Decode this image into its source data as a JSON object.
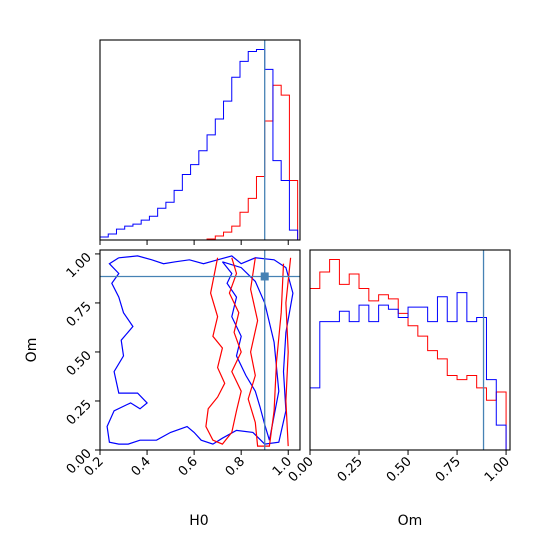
{
  "chart_data": {
    "type": "corner",
    "parameters": [
      "H0",
      "Om"
    ],
    "truths": {
      "H0": 0.9,
      "Om": 0.885
    },
    "colors": {
      "red": "#ff0000",
      "blue": "#0000ff",
      "truth": "#4682b4"
    },
    "panels": [
      {
        "id": "h0-marginal",
        "type": "histogram",
        "x": "H0",
        "xlim": [
          0.2,
          1.05
        ],
        "bin_edges": [
          0.2,
          0.235,
          0.27,
          0.305,
          0.34,
          0.375,
          0.41,
          0.445,
          0.48,
          0.515,
          0.55,
          0.585,
          0.62,
          0.655,
          0.69,
          0.725,
          0.76,
          0.795,
          0.83,
          0.865,
          0.9,
          0.935,
          0.97,
          1.005,
          1.04
        ],
        "series": [
          {
            "color": "red",
            "counts": [
              0,
              0,
              0,
              0,
              0,
              0,
              0,
              0,
              0,
              0,
              0,
              0,
              0,
              0.005,
              0.02,
              0.04,
              0.07,
              0.14,
              0.21,
              0.32,
              0.6,
              0.78,
              0.73,
              0.3
            ]
          },
          {
            "color": "blue",
            "counts": [
              0.015,
              0.03,
              0.055,
              0.07,
              0.08,
              0.1,
              0.12,
              0.16,
              0.19,
              0.25,
              0.33,
              0.38,
              0.45,
              0.53,
              0.61,
              0.7,
              0.82,
              0.9,
              0.95,
              0.96,
              0.86,
              0.4,
              0.3,
              0.05
            ]
          }
        ]
      },
      {
        "id": "om-marginal",
        "type": "histogram",
        "x": "Om",
        "xlim": [
          0,
          1.02
        ],
        "bin_edges": [
          0,
          0.05,
          0.1,
          0.15,
          0.2,
          0.25,
          0.3,
          0.35,
          0.4,
          0.45,
          0.5,
          0.55,
          0.6,
          0.65,
          0.7,
          0.75,
          0.8,
          0.85,
          0.9,
          0.95,
          1.0
        ],
        "series": [
          {
            "color": "red",
            "counts": [
              0.78,
              0.86,
              0.92,
              0.8,
              0.85,
              0.78,
              0.72,
              0.75,
              0.73,
              0.66,
              0.6,
              0.55,
              0.48,
              0.44,
              0.36,
              0.34,
              0.36,
              0.3,
              0.24,
              0.28
            ]
          },
          {
            "color": "blue",
            "counts": [
              0.3,
              0.62,
              0.62,
              0.67,
              0.62,
              0.7,
              0.62,
              0.7,
              0.68,
              0.64,
              0.69,
              0.69,
              0.62,
              0.74,
              0.62,
              0.76,
              0.62,
              0.64,
              0.34,
              0.12
            ]
          }
        ]
      },
      {
        "id": "h0-om-2d",
        "type": "contour",
        "x": "H0",
        "y": "Om",
        "xlim": [
          0.2,
          1.05
        ],
        "ylim": [
          0,
          1.02
        ],
        "xticks": [
          "0.2",
          "0.4",
          "0.6",
          "0.8",
          "1.0"
        ],
        "yticks": [
          "0.00",
          "0.25",
          "0.50",
          "0.75",
          "1.00"
        ],
        "contours": [
          {
            "color": "blue",
            "points": [
              [
                0.28,
                0.98
              ],
              [
                0.36,
                0.99
              ],
              [
                0.42,
                0.97
              ],
              [
                0.47,
                0.95
              ],
              [
                0.52,
                0.96
              ],
              [
                0.58,
                0.97
              ],
              [
                0.64,
                0.95
              ],
              [
                0.7,
                0.97
              ],
              [
                0.76,
                0.99
              ],
              [
                0.8,
                0.95
              ],
              [
                0.86,
                0.98
              ],
              [
                0.94,
                0.97
              ],
              [
                0.99,
                0.93
              ],
              [
                1.02,
                0.8
              ],
              [
                0.99,
                0.6
              ],
              [
                0.98,
                0.4
              ],
              [
                0.99,
                0.2
              ],
              [
                0.96,
                0.04
              ],
              [
                0.9,
                0.03
              ],
              [
                0.85,
                0.09
              ],
              [
                0.78,
                0.1
              ],
              [
                0.72,
                0.06
              ],
              [
                0.68,
                0.03
              ],
              [
                0.63,
                0.05
              ],
              [
                0.6,
                0.09
              ],
              [
                0.57,
                0.12
              ],
              [
                0.5,
                0.09
              ],
              [
                0.44,
                0.05
              ],
              [
                0.37,
                0.05
              ],
              [
                0.32,
                0.03
              ],
              [
                0.28,
                0.03
              ],
              [
                0.24,
                0.04
              ],
              [
                0.23,
                0.12
              ],
              [
                0.26,
                0.2
              ],
              [
                0.33,
                0.24
              ],
              [
                0.37,
                0.21
              ],
              [
                0.4,
                0.24
              ],
              [
                0.36,
                0.29
              ],
              [
                0.28,
                0.29
              ],
              [
                0.26,
                0.4
              ],
              [
                0.3,
                0.48
              ],
              [
                0.29,
                0.56
              ],
              [
                0.34,
                0.63
              ],
              [
                0.3,
                0.7
              ],
              [
                0.28,
                0.78
              ],
              [
                0.25,
                0.85
              ],
              [
                0.28,
                0.9
              ],
              [
                0.24,
                0.95
              ],
              [
                0.28,
                0.98
              ]
            ]
          },
          {
            "color": "blue",
            "points": [
              [
                0.72,
                0.96
              ],
              [
                0.76,
                0.9
              ],
              [
                0.74,
                0.85
              ],
              [
                0.78,
                0.78
              ],
              [
                0.76,
                0.68
              ],
              [
                0.8,
                0.58
              ],
              [
                0.78,
                0.48
              ],
              [
                0.82,
                0.38
              ],
              [
                0.86,
                0.3
              ],
              [
                0.88,
                0.22
              ],
              [
                0.9,
                0.13
              ],
              [
                0.92,
                0.05
              ],
              [
                0.96,
                0.3
              ],
              [
                0.94,
                0.55
              ],
              [
                0.9,
                0.75
              ],
              [
                0.86,
                0.86
              ],
              [
                0.8,
                0.93
              ],
              [
                0.72,
                0.96
              ]
            ]
          },
          {
            "color": "red",
            "points": [
              [
                0.7,
                0.98
              ],
              [
                0.67,
                0.8
              ],
              [
                0.7,
                0.68
              ],
              [
                0.68,
                0.58
              ],
              [
                0.72,
                0.52
              ],
              [
                0.7,
                0.42
              ],
              [
                0.73,
                0.34
              ],
              [
                0.7,
                0.27
              ],
              [
                0.66,
                0.21
              ],
              [
                0.65,
                0.12
              ],
              [
                0.68,
                0.05
              ],
              [
                0.72,
                0.03
              ],
              [
                0.76,
                0.09
              ],
              [
                0.78,
                0.2
              ],
              [
                0.8,
                0.3
              ],
              [
                0.76,
                0.4
              ],
              [
                0.8,
                0.5
              ],
              [
                0.77,
                0.6
              ],
              [
                0.79,
                0.7
              ],
              [
                0.75,
                0.8
              ],
              [
                0.78,
                0.9
              ],
              [
                0.76,
                0.98
              ]
            ]
          },
          {
            "color": "red",
            "points": [
              [
                0.86,
                0.98
              ],
              [
                0.84,
                0.82
              ],
              [
                0.87,
                0.66
              ],
              [
                0.84,
                0.5
              ],
              [
                0.86,
                0.38
              ],
              [
                0.83,
                0.26
              ],
              [
                0.86,
                0.14
              ],
              [
                0.87,
                0.02
              ],
              [
                0.92,
                0.02
              ],
              [
                0.94,
                0.2
              ],
              [
                0.95,
                0.45
              ],
              [
                0.97,
                0.7
              ],
              [
                0.98,
                0.95
              ]
            ]
          },
          {
            "color": "red",
            "points": [
              [
                1.01,
                0.98
              ],
              [
                0.99,
                0.75
              ],
              [
                1.0,
                0.5
              ],
              [
                0.99,
                0.25
              ],
              [
                1.0,
                0.02
              ]
            ]
          }
        ]
      }
    ]
  }
}
